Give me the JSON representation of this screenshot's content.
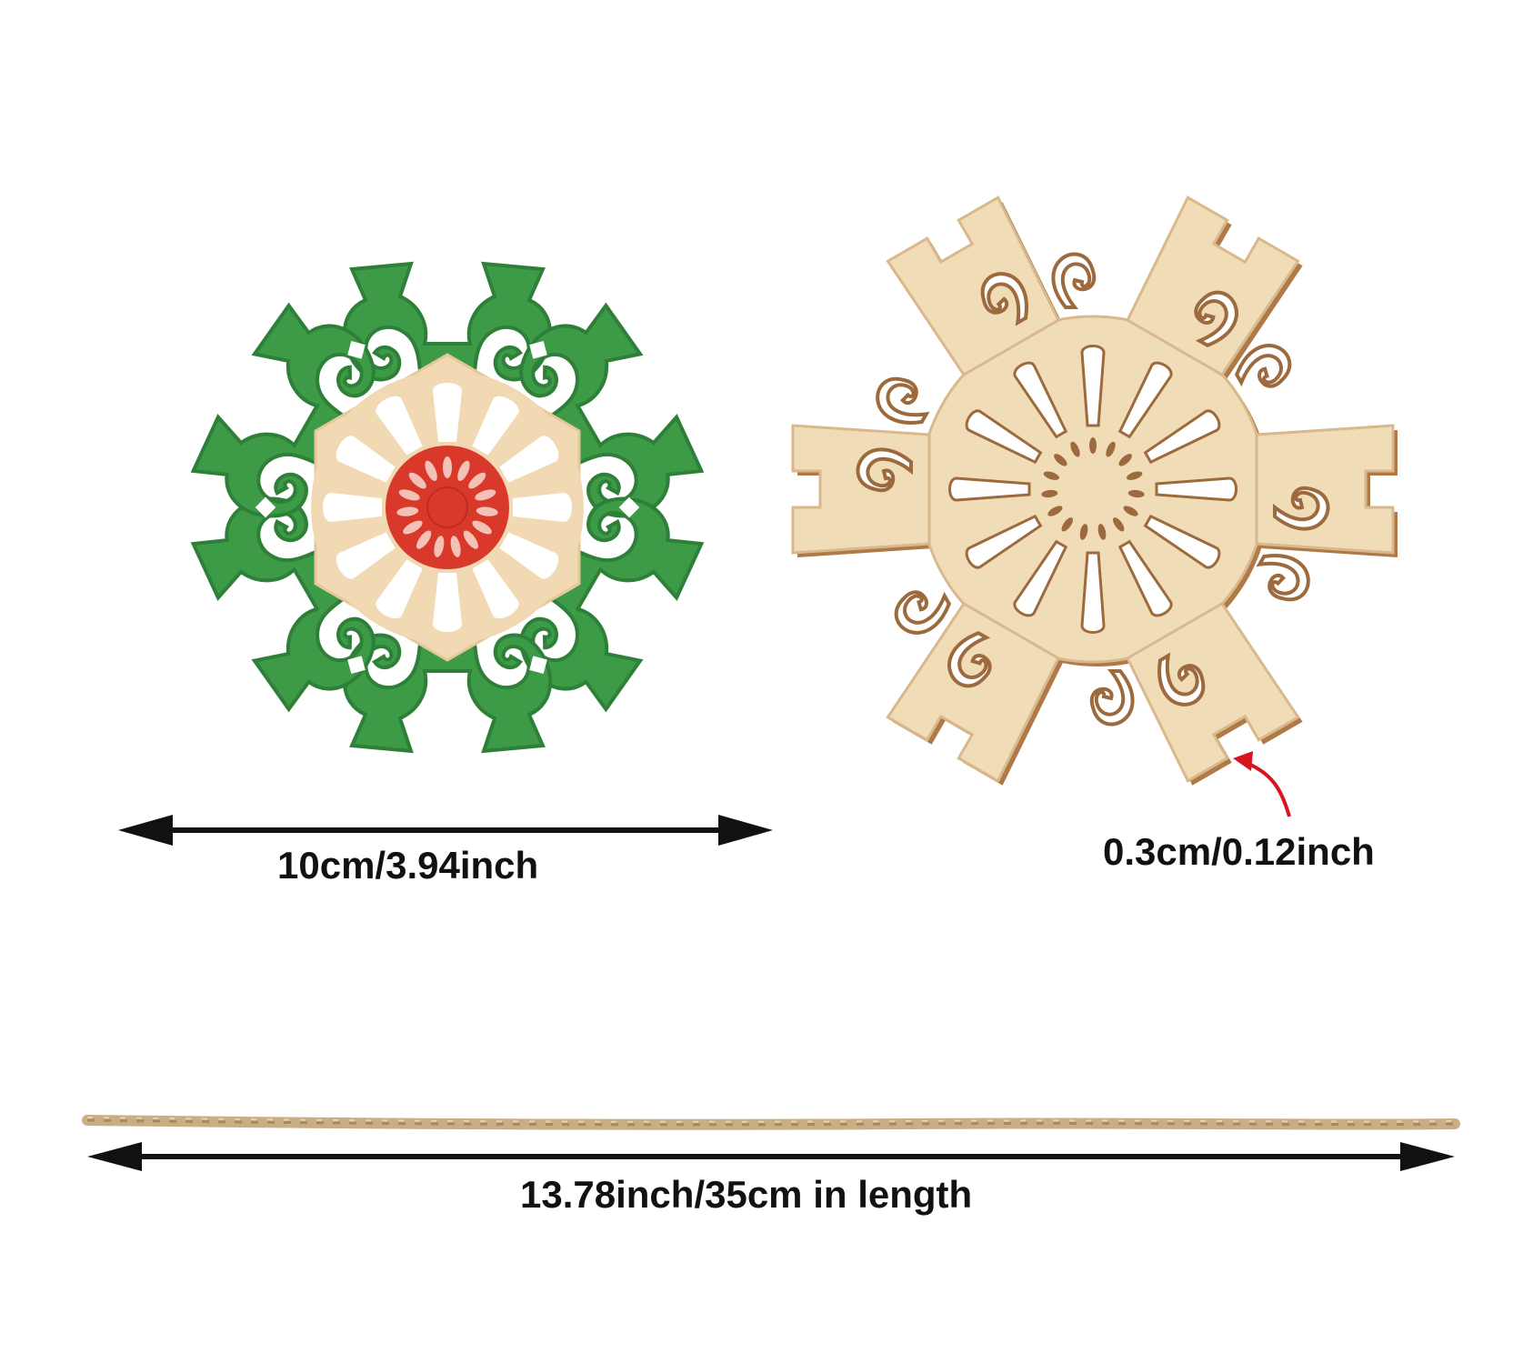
{
  "labels": {
    "width": "10cm/3.94inch",
    "thickness": "0.3cm/0.12inch",
    "length": "13.78inch/35cm in length"
  },
  "colors": {
    "painted_green": "#3d9a47",
    "painted_green_dark": "#2e7f38",
    "natural_wood": "#f1dcb8",
    "wood_edge": "#b07a48",
    "center_red": "#d9392a",
    "arrow_black": "#111111",
    "arrow_red": "#d8141c",
    "twine": "#c9ad85"
  },
  "items": [
    {
      "name": "painted-snowflake-ornament",
      "finish": "green and red painted"
    },
    {
      "name": "natural-snowflake-ornament",
      "finish": "unfinished wood"
    },
    {
      "name": "jute-twine",
      "finish": "natural"
    }
  ]
}
